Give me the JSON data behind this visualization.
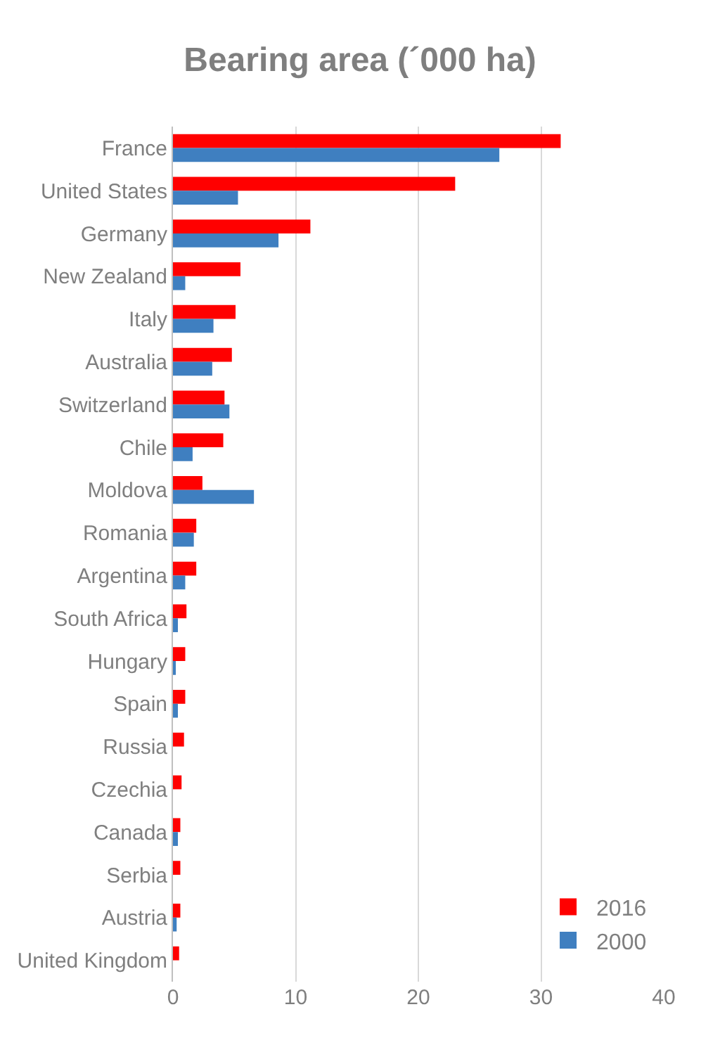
{
  "chart_data": {
    "type": "bar",
    "orientation": "horizontal",
    "title": "Bearing area (´000 ha)",
    "categories": [
      "France",
      "United States",
      "Germany",
      "New Zealand",
      "Italy",
      "Australia",
      "Switzerland",
      "Chile",
      "Moldova",
      "Romania",
      "Argentina",
      "South Africa",
      "Hungary",
      "Spain",
      "Russia",
      "Czechia",
      "Canada",
      "Serbia",
      "Austria",
      "United Kingdom"
    ],
    "series": [
      {
        "name": "2016",
        "color": "#ff0000",
        "values": [
          31.6,
          23.0,
          11.2,
          5.5,
          5.1,
          4.8,
          4.2,
          4.1,
          2.4,
          1.9,
          1.9,
          1.1,
          1.0,
          1.0,
          0.9,
          0.7,
          0.6,
          0.6,
          0.6,
          0.5
        ]
      },
      {
        "name": "2000",
        "color": "#3f7fc0",
        "values": [
          26.6,
          5.3,
          8.6,
          1.0,
          3.3,
          3.2,
          4.6,
          1.6,
          6.6,
          1.7,
          1.0,
          0.4,
          0.2,
          0.4,
          null,
          null,
          0.4,
          null,
          0.3,
          null
        ]
      }
    ],
    "xlim": [
      0,
      40
    ],
    "xticks": [
      0,
      10,
      20,
      30,
      40
    ],
    "grid": "x",
    "legend": "bottom right"
  }
}
